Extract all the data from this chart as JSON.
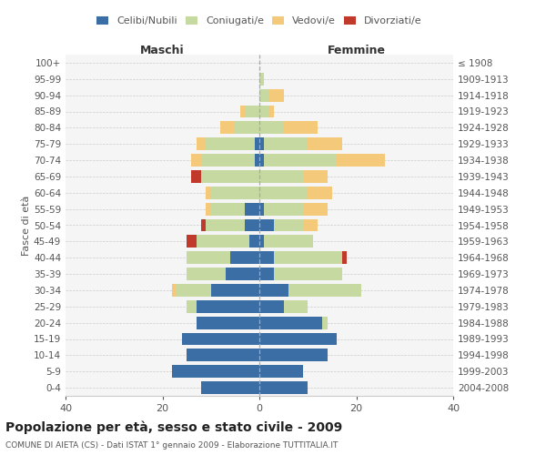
{
  "age_groups": [
    "0-4",
    "5-9",
    "10-14",
    "15-19",
    "20-24",
    "25-29",
    "30-34",
    "35-39",
    "40-44",
    "45-49",
    "50-54",
    "55-59",
    "60-64",
    "65-69",
    "70-74",
    "75-79",
    "80-84",
    "85-89",
    "90-94",
    "95-99",
    "100+"
  ],
  "birth_years": [
    "2004-2008",
    "1999-2003",
    "1994-1998",
    "1989-1993",
    "1984-1988",
    "1979-1983",
    "1974-1978",
    "1969-1973",
    "1964-1968",
    "1959-1963",
    "1954-1958",
    "1949-1953",
    "1944-1948",
    "1939-1943",
    "1934-1938",
    "1929-1933",
    "1924-1928",
    "1919-1923",
    "1914-1918",
    "1909-1913",
    "≤ 1908"
  ],
  "maschi": {
    "celibi": [
      12,
      18,
      15,
      16,
      13,
      13,
      10,
      7,
      6,
      2,
      3,
      3,
      0,
      0,
      1,
      1,
      0,
      0,
      0,
      0,
      0
    ],
    "coniugati": [
      0,
      0,
      0,
      0,
      0,
      2,
      7,
      8,
      9,
      11,
      8,
      7,
      10,
      12,
      11,
      10,
      5,
      3,
      0,
      0,
      0
    ],
    "vedovi": [
      0,
      0,
      0,
      0,
      0,
      0,
      1,
      0,
      0,
      0,
      0,
      1,
      1,
      0,
      2,
      2,
      3,
      1,
      0,
      0,
      0
    ],
    "divorziati": [
      0,
      0,
      0,
      0,
      0,
      0,
      0,
      0,
      0,
      2,
      1,
      0,
      0,
      2,
      0,
      0,
      0,
      0,
      0,
      0,
      0
    ]
  },
  "femmine": {
    "nubili": [
      10,
      9,
      14,
      16,
      13,
      5,
      6,
      3,
      3,
      1,
      3,
      1,
      0,
      0,
      1,
      1,
      0,
      0,
      0,
      0,
      0
    ],
    "coniugate": [
      0,
      0,
      0,
      0,
      1,
      5,
      15,
      14,
      14,
      10,
      6,
      8,
      10,
      9,
      15,
      9,
      5,
      2,
      2,
      1,
      0
    ],
    "vedove": [
      0,
      0,
      0,
      0,
      0,
      0,
      0,
      0,
      0,
      0,
      3,
      5,
      5,
      5,
      10,
      7,
      7,
      1,
      3,
      0,
      0
    ],
    "divorziate": [
      0,
      0,
      0,
      0,
      0,
      0,
      0,
      0,
      1,
      0,
      0,
      0,
      0,
      0,
      0,
      0,
      0,
      0,
      0,
      0,
      0
    ]
  },
  "colors": {
    "celibi": "#3a6ea5",
    "coniugati": "#c5d9a0",
    "vedovi": "#f5c97a",
    "divorziati": "#c0392b"
  },
  "xlim": 40,
  "title": "Popolazione per età, sesso e stato civile - 2009",
  "subtitle": "COMUNE DI AIETA (CS) - Dati ISTAT 1° gennaio 2009 - Elaborazione TUTTITALIA.IT",
  "ylabel_left": "Fasce di età",
  "xlabel_left": "Maschi",
  "xlabel_right": "Femmine"
}
